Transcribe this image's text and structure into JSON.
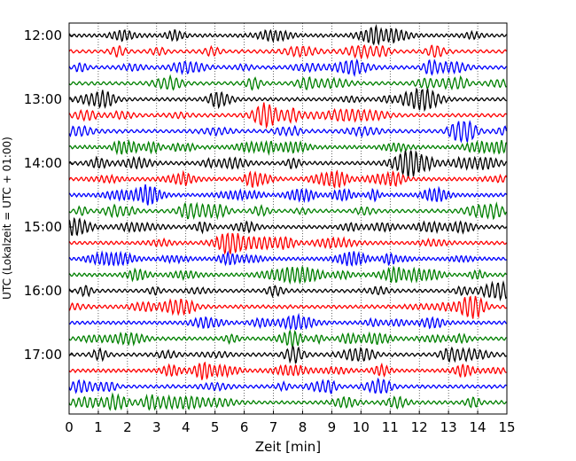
{
  "chart_data": {
    "type": "line",
    "title": "",
    "xlabel": "Zeit  [min]",
    "ylabel": "UTC (Lokalzeit = UTC + 01:00)",
    "xlim": [
      0,
      15
    ],
    "x_ticks": [
      "0",
      "1",
      "2",
      "3",
      "4",
      "5",
      "6",
      "7",
      "8",
      "9",
      "10",
      "11",
      "12",
      "13",
      "14",
      "15"
    ],
    "y_tick_labels": [
      "12:00",
      "13:00",
      "14:00",
      "15:00",
      "16:00",
      "17:00"
    ],
    "grid": "vertical dotted lines at each minute",
    "trace_interval_minutes": 15,
    "trace_colors": [
      "#000000",
      "#ff0000",
      "#0000ff",
      "#008000"
    ],
    "series": [
      {
        "start": "12:00",
        "color": "#000000"
      },
      {
        "start": "12:15",
        "color": "#ff0000"
      },
      {
        "start": "12:30",
        "color": "#0000ff"
      },
      {
        "start": "12:45",
        "color": "#008000"
      },
      {
        "start": "13:00",
        "color": "#000000"
      },
      {
        "start": "13:15",
        "color": "#ff0000"
      },
      {
        "start": "13:30",
        "color": "#0000ff"
      },
      {
        "start": "13:45",
        "color": "#008000"
      },
      {
        "start": "14:00",
        "color": "#000000"
      },
      {
        "start": "14:15",
        "color": "#ff0000"
      },
      {
        "start": "14:30",
        "color": "#0000ff"
      },
      {
        "start": "14:45",
        "color": "#008000"
      },
      {
        "start": "15:00",
        "color": "#000000"
      },
      {
        "start": "15:15",
        "color": "#ff0000"
      },
      {
        "start": "15:30",
        "color": "#0000ff"
      },
      {
        "start": "15:45",
        "color": "#008000"
      },
      {
        "start": "16:00",
        "color": "#000000"
      },
      {
        "start": "16:15",
        "color": "#ff0000"
      },
      {
        "start": "16:30",
        "color": "#0000ff"
      },
      {
        "start": "16:45",
        "color": "#008000"
      },
      {
        "start": "17:00",
        "color": "#000000"
      },
      {
        "start": "17:15",
        "color": "#ff0000"
      },
      {
        "start": "17:30",
        "color": "#0000ff"
      },
      {
        "start": "17:45",
        "color": "#008000"
      }
    ]
  }
}
